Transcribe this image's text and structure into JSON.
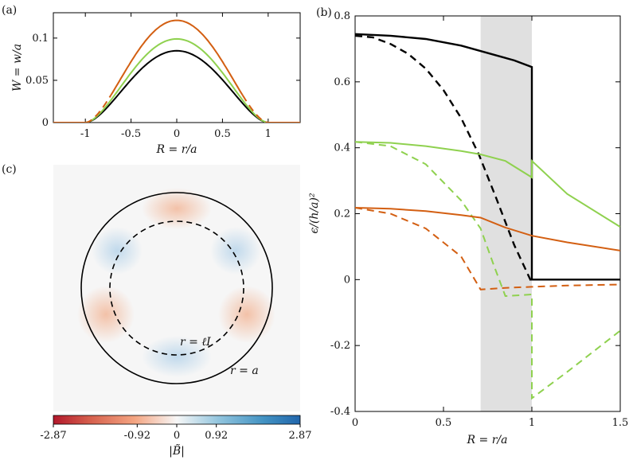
{
  "panel_labels": {
    "a": "(a)",
    "b": "(b)",
    "c": "(c)"
  },
  "colors": {
    "black": "#000000",
    "green": "#8fd14f",
    "orange": "#d35f12",
    "shade": "#e0e0e0"
  },
  "chart_data": [
    {
      "id": "a",
      "type": "line",
      "xlabel": "R = r/a",
      "ylabel": "W = w/a",
      "xlim": [
        -1.35,
        1.35
      ],
      "ylim": [
        0,
        0.13
      ],
      "xticks": [
        -1,
        -0.5,
        0,
        0.5,
        1
      ],
      "xtick_labels": [
        "-1",
        "-0.5",
        "0",
        "0.5",
        "1"
      ],
      "yticks": [
        0,
        0.05,
        0.1
      ],
      "ytick_labels": [
        "0",
        "0.05",
        "0.1"
      ],
      "series": [
        {
          "color": "#000000",
          "style": "solid",
          "peak": 0.085
        },
        {
          "color": "#8fd14f",
          "style": "solid",
          "peak": 0.099
        },
        {
          "color": "#d35f12",
          "style": "solid-inner-dashed-outer",
          "peak": 0.121,
          "inner_limit": 0.72
        }
      ]
    },
    {
      "id": "b",
      "type": "line",
      "xlabel": "R = r/a",
      "ylabel": "ϵ/(h/a)²",
      "xlim": [
        0,
        1.5
      ],
      "ylim": [
        -0.4,
        0.8
      ],
      "xticks": [
        0,
        0.5,
        1,
        1.5
      ],
      "xtick_labels": [
        "0",
        "0.5",
        "1",
        "1.5"
      ],
      "yticks": [
        -0.4,
        -0.2,
        0,
        0.2,
        0.4,
        0.6,
        0.8
      ],
      "ytick_labels": [
        "-0.4",
        "-0.2",
        "0",
        "0.2",
        "0.4",
        "0.6",
        "0.8"
      ],
      "shaded_region": [
        0.71,
        1.0
      ],
      "series": [
        {
          "color": "#000000",
          "style": "solid",
          "x": [
            0,
            0.2,
            0.4,
            0.6,
            0.8,
            0.9,
            1.0,
            1.0,
            1.5
          ],
          "y": [
            0.745,
            0.74,
            0.73,
            0.71,
            0.68,
            0.665,
            0.645,
            0.0,
            0.0
          ]
        },
        {
          "color": "#000000",
          "style": "dashed",
          "x": [
            0,
            0.1,
            0.2,
            0.3,
            0.4,
            0.5,
            0.6,
            0.7,
            0.8,
            0.9,
            1.0
          ],
          "y": [
            0.74,
            0.735,
            0.715,
            0.685,
            0.64,
            0.575,
            0.49,
            0.38,
            0.245,
            0.105,
            -0.01
          ]
        },
        {
          "color": "#8fd14f",
          "style": "solid",
          "x": [
            0,
            0.2,
            0.4,
            0.6,
            0.71,
            0.85,
            1.0,
            1.0,
            1.2,
            1.5
          ],
          "y": [
            0.418,
            0.415,
            0.405,
            0.39,
            0.38,
            0.36,
            0.31,
            0.36,
            0.26,
            0.16
          ]
        },
        {
          "color": "#8fd14f",
          "style": "dashed",
          "x": [
            0,
            0.2,
            0.4,
            0.6,
            0.71,
            0.78,
            0.85,
            1.0,
            1.0,
            1.2,
            1.5
          ],
          "y": [
            0.418,
            0.405,
            0.35,
            0.24,
            0.155,
            0.05,
            -0.05,
            -0.045,
            -0.36,
            -0.28,
            -0.155
          ]
        },
        {
          "color": "#d35f12",
          "style": "solid",
          "x": [
            0,
            0.2,
            0.4,
            0.6,
            0.71,
            0.85,
            1.0,
            1.2,
            1.5
          ],
          "y": [
            0.218,
            0.215,
            0.208,
            0.196,
            0.188,
            0.158,
            0.133,
            0.113,
            0.088
          ]
        },
        {
          "color": "#d35f12",
          "style": "dashed",
          "x": [
            0,
            0.2,
            0.4,
            0.6,
            0.71,
            0.85,
            1.0,
            1.2,
            1.5
          ],
          "y": [
            0.218,
            0.2,
            0.155,
            0.07,
            -0.03,
            -0.025,
            -0.022,
            -0.018,
            -0.015
          ]
        }
      ]
    },
    {
      "id": "c",
      "type": "heatmap",
      "colorbar_label": "|B̃|",
      "colorbar_ticks": [
        "-2.87",
        "-0.92",
        "0",
        "0.92",
        "2.87"
      ],
      "colorbar_range": [
        -2.87,
        2.87
      ],
      "annotations": {
        "inner": "r = ℓI",
        "outer": "r = a"
      }
    }
  ]
}
